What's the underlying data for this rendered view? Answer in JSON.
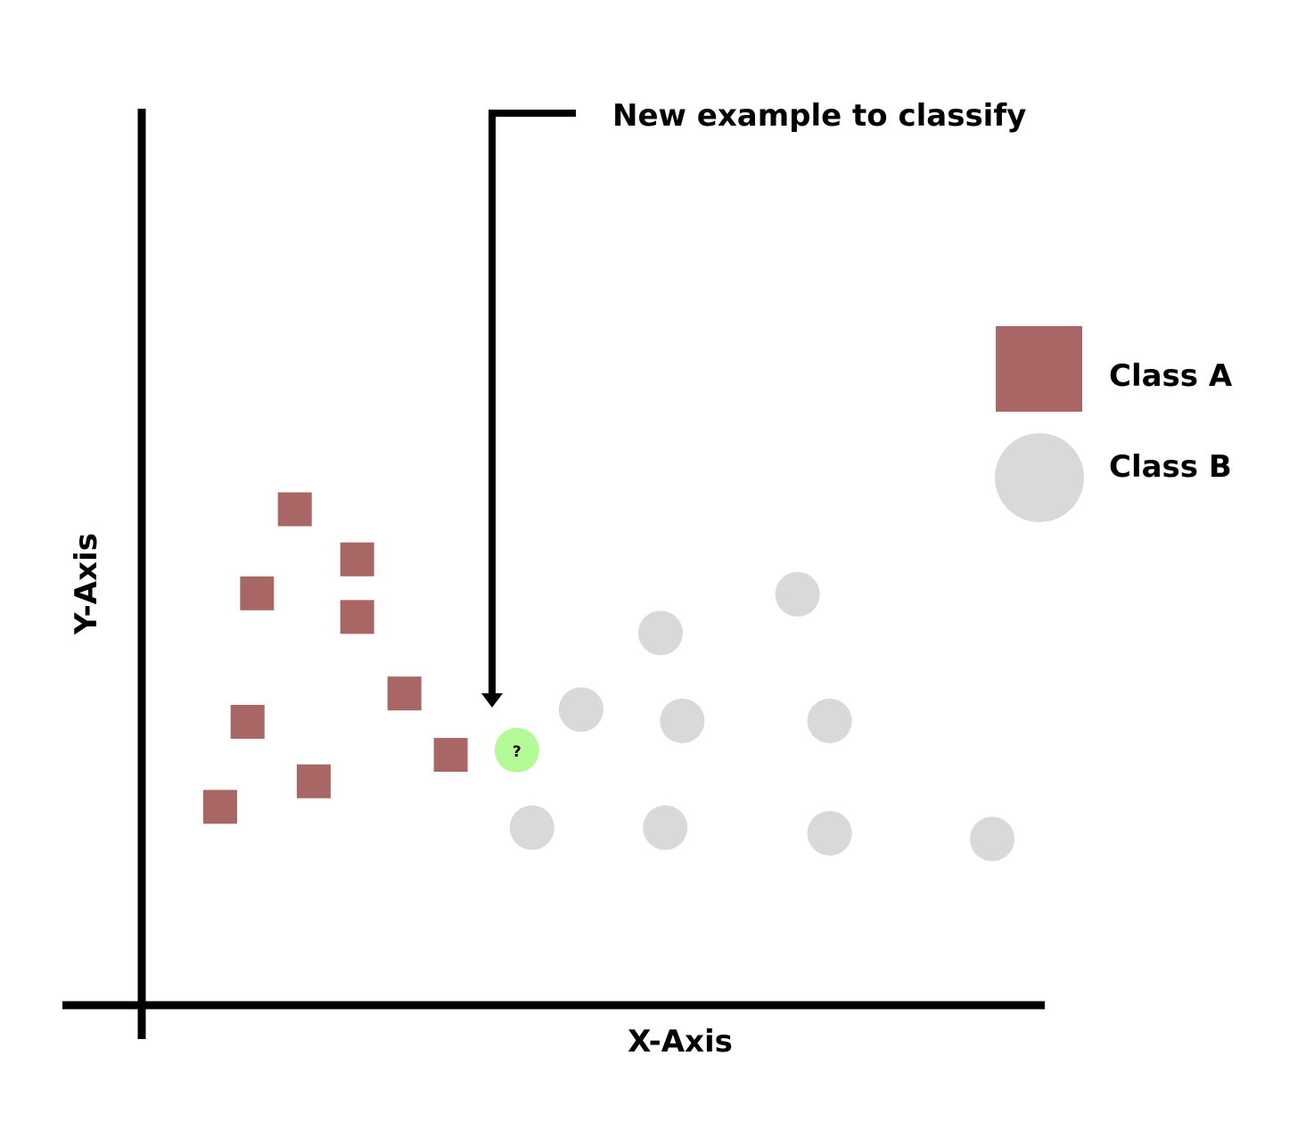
{
  "x_axis_label": "X-Axis",
  "y_axis_label": "Y-Axis",
  "annotation": "New example to classify",
  "legend": [
    {
      "label": "Class A",
      "shape": "square",
      "color": "#a86664"
    },
    {
      "label": "Class B",
      "shape": "circle",
      "color": "#d9d9d9"
    }
  ],
  "chart_data": {
    "type": "scatter",
    "series": [
      {
        "name": "Class A",
        "shape": "square",
        "color": "#a86664",
        "points": [
          {
            "x": 1.62,
            "y": 5.25
          },
          {
            "x": 2.28,
            "y": 4.72
          },
          {
            "x": 1.22,
            "y": 4.36
          },
          {
            "x": 2.28,
            "y": 4.11
          },
          {
            "x": 2.78,
            "y": 3.3
          },
          {
            "x": 1.12,
            "y": 3.0
          },
          {
            "x": 3.27,
            "y": 2.65
          },
          {
            "x": 1.82,
            "y": 2.37
          },
          {
            "x": 0.83,
            "y": 2.1
          }
        ]
      },
      {
        "name": "Class B",
        "shape": "circle",
        "color": "#d9d9d9",
        "points": [
          {
            "x": 6.94,
            "y": 4.35
          },
          {
            "x": 5.49,
            "y": 3.94
          },
          {
            "x": 4.65,
            "y": 3.13
          },
          {
            "x": 5.72,
            "y": 3.01
          },
          {
            "x": 7.28,
            "y": 3.01
          },
          {
            "x": 4.13,
            "y": 1.88
          },
          {
            "x": 5.54,
            "y": 1.88
          },
          {
            "x": 7.28,
            "y": 1.82
          },
          {
            "x": 9.0,
            "y": 1.76
          }
        ]
      }
    ],
    "query_point": {
      "x": 3.97,
      "y": 2.7,
      "label": "?",
      "color": "#b4fa96"
    }
  }
}
